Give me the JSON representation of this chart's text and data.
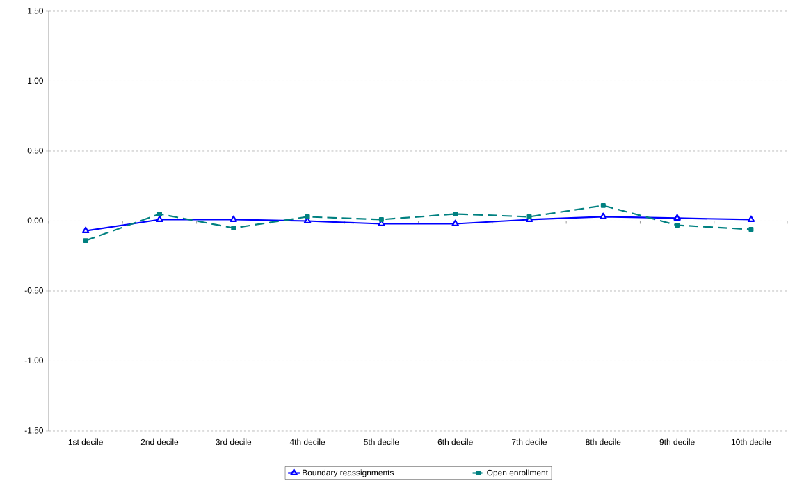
{
  "chart_data": {
    "type": "line",
    "categories": [
      "1st decile",
      "2nd decile",
      "3rd decile",
      "4th decile",
      "5th decile",
      "6th decile",
      "7th decile",
      "8th decile",
      "9th decile",
      "10th decile"
    ],
    "series": [
      {
        "name": "Boundary reassignments",
        "color": "#0000ff",
        "marker": "triangle",
        "line_style": "solid",
        "values": [
          -0.07,
          0.01,
          0.01,
          0.0,
          -0.02,
          -0.02,
          0.01,
          0.03,
          0.02,
          0.01
        ]
      },
      {
        "name": "Open enrollment",
        "color": "#008080",
        "marker": "square",
        "line_style": "dashed",
        "values": [
          -0.14,
          0.05,
          -0.05,
          0.03,
          0.01,
          0.05,
          0.03,
          0.11,
          -0.03,
          -0.06
        ]
      }
    ],
    "ylim": [
      -1.5,
      1.5
    ],
    "yticks": [
      {
        "value": -1.5,
        "label": "-1,50"
      },
      {
        "value": -1.0,
        "label": "-1,00"
      },
      {
        "value": -0.5,
        "label": "-0,50"
      },
      {
        "value": 0.0,
        "label": "0,00"
      },
      {
        "value": 0.5,
        "label": "0,50"
      },
      {
        "value": 1.0,
        "label": "1,00"
      },
      {
        "value": 1.5,
        "label": "1,50"
      }
    ],
    "grid": "y",
    "legend": "bottom"
  }
}
